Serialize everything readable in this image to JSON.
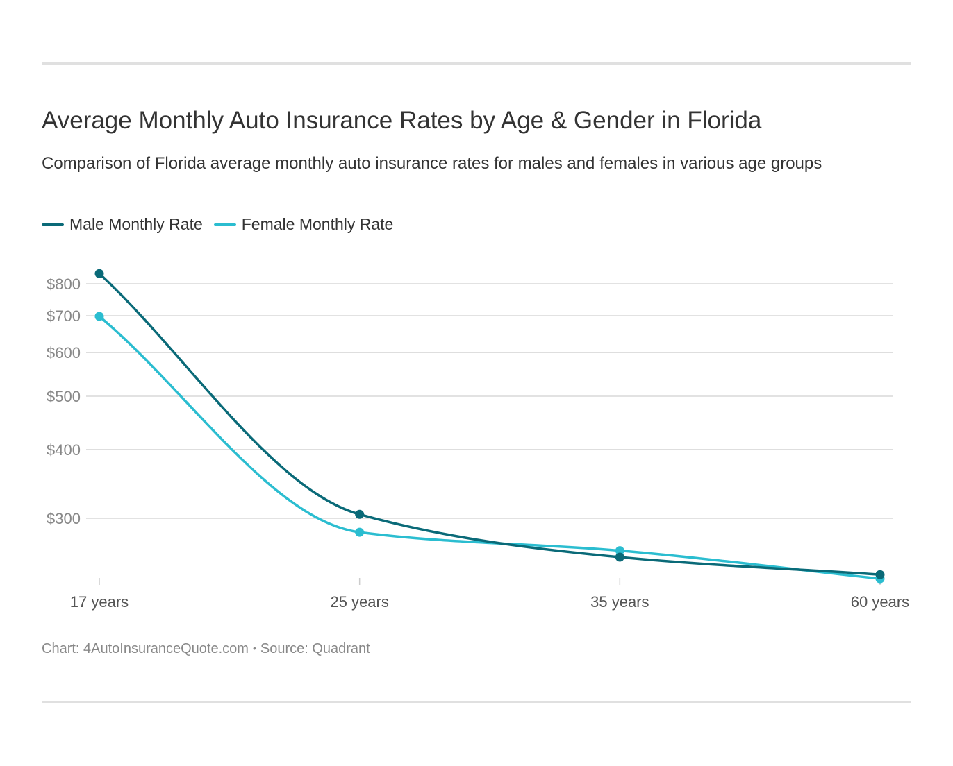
{
  "header": {
    "title": "Average Monthly Auto Insurance Rates by Age & Gender in Florida",
    "subtitle": "Comparison of Florida average monthly auto insurance rates for males and females in various age groups"
  },
  "footer": {
    "chart_credit": "Chart: 4AutoInsuranceQuote.com",
    "separator": "•",
    "source": "Source: Quadrant"
  },
  "chart_data": {
    "type": "line",
    "title": "Average Monthly Auto Insurance Rates by Age & Gender in Florida",
    "subtitle": "Comparison of Florida average monthly auto insurance rates for males and females in various age groups",
    "xlabel": "",
    "ylabel": "",
    "y_scale": "log",
    "categories": [
      "17 years",
      "25 years",
      "35 years",
      "60 years"
    ],
    "y_ticks": [
      300,
      400,
      500,
      600,
      700,
      800
    ],
    "y_tick_labels": [
      "$300",
      "$400",
      "$500",
      "$600",
      "$700",
      "$800"
    ],
    "ylim": [
      220,
      860
    ],
    "grid": true,
    "legend_position": "top-left",
    "series": [
      {
        "name": "Male Monthly Rate",
        "color": "#0a6a78",
        "values": [
          835,
          305,
          255,
          237
        ]
      },
      {
        "name": "Female Monthly Rate",
        "color": "#2bbdd0",
        "values": [
          698,
          283,
          262,
          233
        ]
      }
    ]
  }
}
